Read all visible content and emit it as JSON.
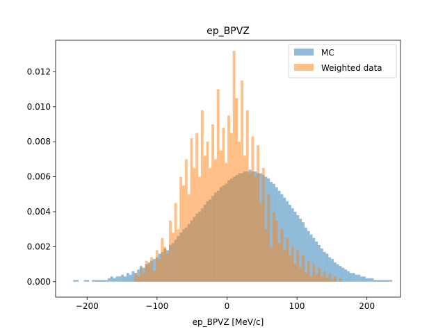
{
  "chart_data": {
    "type": "bar",
    "title": "ep_BPVZ",
    "xlabel": "ep_BPVZ [MeV/c]",
    "ylabel": "",
    "xlim": [
      -245,
      248
    ],
    "ylim": [
      -0.00088,
      0.0138
    ],
    "xticks": [
      -200,
      -100,
      0,
      100,
      200
    ],
    "xtick_labels": [
      "−200",
      "−100",
      "0",
      "100",
      "200"
    ],
    "yticks": [
      0.0,
      0.002,
      0.004,
      0.006,
      0.008,
      0.01,
      0.012
    ],
    "ytick_labels": [
      "0.000",
      "0.002",
      "0.004",
      "0.006",
      "0.008",
      "0.010",
      "0.012"
    ],
    "legend_position": "top-right",
    "x_start": -235,
    "bin_width": 3.8,
    "series": [
      {
        "name": "MC",
        "color": "#1f77b4",
        "opacity": 0.5,
        "values": [
          0.0,
          0.0,
          0.0,
          0.0,
          0.0001,
          0.0001,
          0.0,
          0.0,
          0.0001,
          0.0001,
          0.0,
          0.0001,
          0.0001,
          0.0001,
          0.0001,
          0.0001,
          0.0001,
          0.0002,
          0.0003,
          0.0002,
          0.0003,
          0.0003,
          0.0004,
          0.0003,
          0.0005,
          0.0004,
          0.0006,
          0.0005,
          0.0007,
          0.0009,
          0.0008,
          0.001,
          0.0011,
          0.0012,
          0.0013,
          0.0014,
          0.0016,
          0.0017,
          0.0019,
          0.0018,
          0.0021,
          0.0022,
          0.0024,
          0.0026,
          0.0028,
          0.003,
          0.0031,
          0.0033,
          0.0035,
          0.0037,
          0.0039,
          0.004,
          0.0042,
          0.0044,
          0.0046,
          0.0047,
          0.0049,
          0.0051,
          0.0052,
          0.0054,
          0.0055,
          0.0056,
          0.0058,
          0.0059,
          0.006,
          0.0061,
          0.0062,
          0.0062,
          0.0063,
          0.0063,
          0.0064,
          0.0063,
          0.0063,
          0.0062,
          0.0062,
          0.0061,
          0.006,
          0.0059,
          0.0057,
          0.0056,
          0.0054,
          0.0052,
          0.005,
          0.0048,
          0.0046,
          0.0044,
          0.0042,
          0.004,
          0.0038,
          0.0036,
          0.0034,
          0.0031,
          0.0029,
          0.0027,
          0.0025,
          0.0023,
          0.0021,
          0.0019,
          0.0017,
          0.0016,
          0.0014,
          0.0013,
          0.0011,
          0.001,
          0.0009,
          0.0008,
          0.0007,
          0.0006,
          0.0005,
          0.0005,
          0.0004,
          0.0004,
          0.0003,
          0.0003,
          0.0002,
          0.0002,
          0.0002,
          0.0001,
          0.0001,
          0.0001,
          0.0001,
          0.0001,
          0.0001,
          0.0001,
          0.0,
          0.0
        ]
      },
      {
        "name": "Weighted data",
        "color": "#ff7f0e",
        "opacity": 0.5,
        "values": [
          0.0,
          0.0,
          0.0,
          0.0,
          0.0,
          0.0,
          0.0,
          0.0,
          0.0,
          0.0,
          0.0,
          0.0,
          0.0,
          0.0,
          0.0,
          0.0,
          0.0,
          0.0,
          0.0,
          0.0,
          0.0,
          0.0,
          0.0,
          0.0,
          0.0,
          0.0,
          0.0,
          0.0005,
          0.0003,
          0.0008,
          0.0005,
          0.0012,
          0.001,
          0.0014,
          0.0006,
          0.0018,
          0.0013,
          0.0025,
          0.002,
          0.0016,
          0.0035,
          0.0028,
          0.0045,
          0.003,
          0.006,
          0.0055,
          0.007,
          0.005,
          0.0082,
          0.0065,
          0.0085,
          0.006,
          0.0098,
          0.0072,
          0.008,
          0.0065,
          0.009,
          0.007,
          0.011,
          0.0075,
          0.0088,
          0.0068,
          0.0095,
          0.0085,
          0.0132,
          0.0105,
          0.008,
          0.0115,
          0.0072,
          0.0098,
          0.0062,
          0.0083,
          0.006,
          0.0078,
          0.0045,
          0.0065,
          0.003,
          0.005,
          0.002,
          0.004,
          0.0035,
          0.0022,
          0.003,
          0.0018,
          0.0025,
          0.0015,
          0.002,
          0.001,
          0.0018,
          0.0008,
          0.0015,
          0.0005,
          0.0012,
          0.0003,
          0.001,
          0.0004,
          0.0008,
          0.0003,
          0.0006,
          0.0002,
          0.0005,
          0.0001,
          0.0003,
          0.0,
          0.0002,
          0.0,
          0.0,
          0.0,
          0.0,
          0.0,
          0.0,
          0.0,
          0.0,
          0.0,
          0.0,
          0.0,
          0.0,
          0.0,
          0.0,
          0.0,
          0.0,
          0.0,
          0.0,
          0.0
        ]
      }
    ]
  }
}
